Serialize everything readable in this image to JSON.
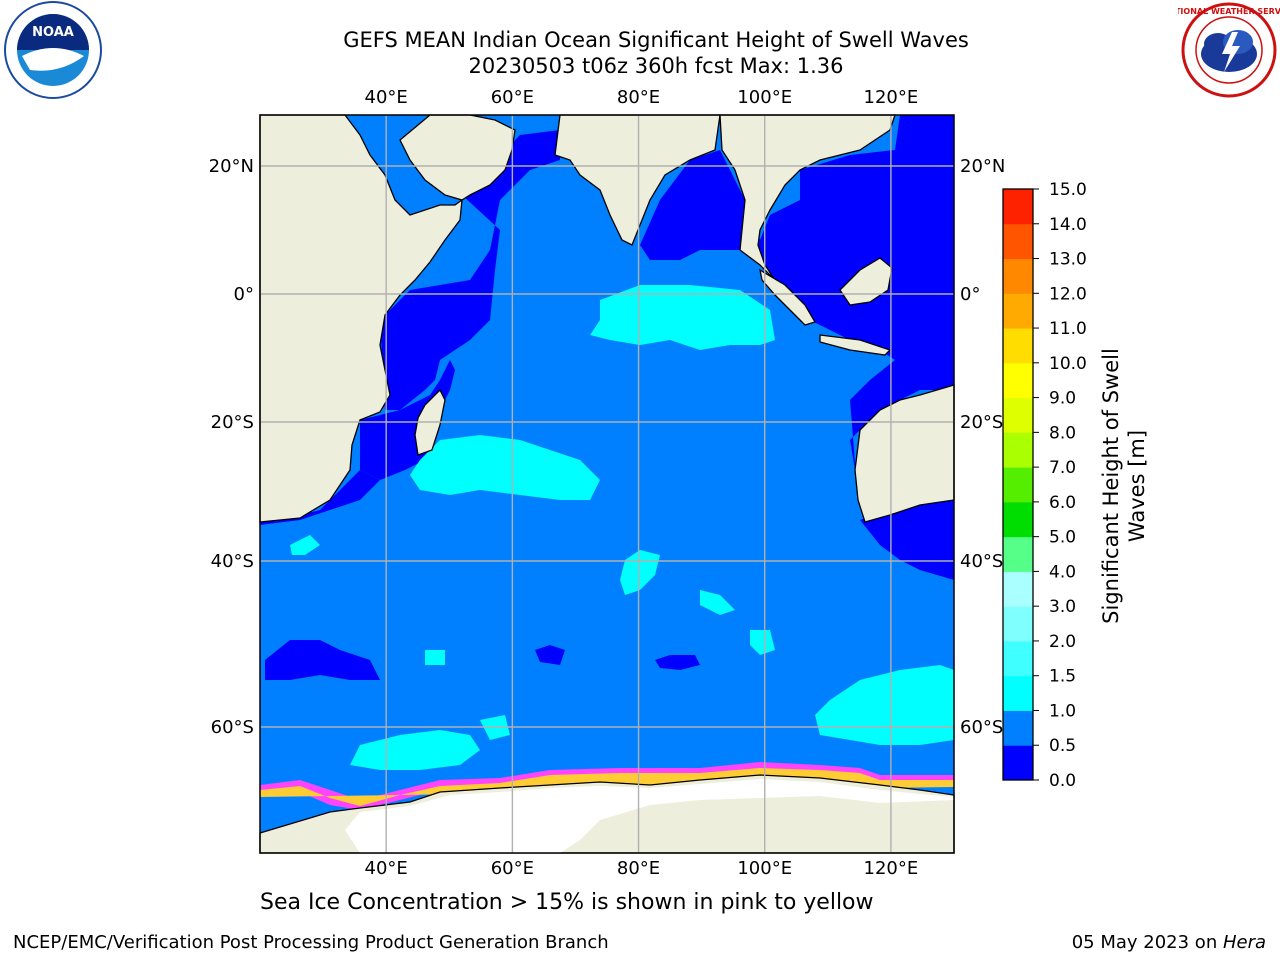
{
  "header": {
    "title_line1": "GEFS MEAN Indian Ocean Significant Height of Swell Waves",
    "title_line2": "20230503 t06z 360h fcst   Max: 1.36"
  },
  "logos": {
    "left": "noaa-logo",
    "right": "national-weather-service-logo",
    "left_text": "NOAA",
    "right_text": "NATIONAL WEATHER SERVICE"
  },
  "map": {
    "lon_ticks": [
      "40°E",
      "60°E",
      "80°E",
      "100°E",
      "120°E"
    ],
    "lat_ticks": [
      "20°N",
      "0°",
      "20°S",
      "40°S",
      "60°S"
    ],
    "lon_range": [
      20,
      130
    ],
    "lat_range": [
      -70,
      27
    ],
    "colors": {
      "land": "#eeeedd",
      "sea_ice": "#ffffff",
      "grid": "#b0b0b0",
      "level_0_0_5": "#0000ff",
      "level_0_5_1_0": "#0080ff",
      "level_1_0_1_5": "#00ffff"
    }
  },
  "colorbar": {
    "title": "Significant Height of Swell Waves [m]",
    "ticks": [
      "0.0",
      "0.5",
      "1.0",
      "1.5",
      "2.0",
      "3.0",
      "4.0",
      "5.0",
      "6.0",
      "7.0",
      "8.0",
      "9.0",
      "10.0",
      "11.0",
      "12.0",
      "13.0",
      "14.0",
      "15.0"
    ],
    "colors": [
      "#0000ff",
      "#0080ff",
      "#00ffff",
      "#40ffff",
      "#80ffff",
      "#aaffff",
      "#55ff88",
      "#00dd00",
      "#55ee00",
      "#aaff00",
      "#ddff00",
      "#ffff00",
      "#ffdd00",
      "#ffaa00",
      "#ff8800",
      "#ff5500",
      "#ff2200"
    ]
  },
  "note": "Sea Ice Concentration > 15% is shown in pink to yellow",
  "footer": {
    "left": "NCEP/EMC/Verification Post Processing Product Generation Branch",
    "date": "05 May 2023 on ",
    "machine": "Hera"
  }
}
